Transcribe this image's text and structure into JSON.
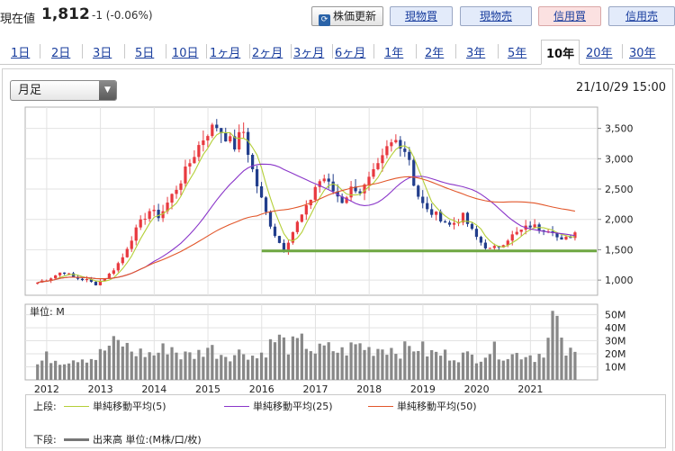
{
  "header": {
    "price_label": "現在値",
    "price": "1,812",
    "change": "-1 (-0.06%)",
    "update_label": "株価更新",
    "update_icon": "refresh-icon",
    "buttons": [
      "現物買",
      "現物売",
      "信用買",
      "信用売"
    ]
  },
  "tabs": [
    "1日",
    "2日",
    "3日",
    "5日",
    "10日",
    "1ヶ月",
    "2ヶ月",
    "3ヶ月",
    "6ヶ月",
    "1年",
    "2年",
    "3年",
    "5年",
    "10年",
    "20年",
    "30年"
  ],
  "active_tab": "10年",
  "period_select": "月足",
  "timestamp": "21/10/29 15:00",
  "volume_unit": "単位: M",
  "legend": {
    "upper_label": "上段:",
    "lower_label": "下段:",
    "ma5": "単純移動平均(5)",
    "ma25": "単純移動平均(25)",
    "ma50": "単純移動平均(50)",
    "volume": "出来高 単位:(M株/口/枚)"
  },
  "colors": {
    "up": "#e8393f",
    "down": "#223e8c",
    "ma5": "#b4cf38",
    "ma25": "#8a36c9",
    "ma50": "#e2572b",
    "support": "#6fa843",
    "volume": "#888888"
  },
  "chart_data": {
    "type": "candlestick",
    "x_ticks": [
      "2012",
      "2013",
      "2014",
      "2015",
      "2016",
      "2017",
      "2018",
      "2019",
      "2020",
      "2021"
    ],
    "price_ticks": [
      "3,500",
      "3,000",
      "2,500",
      "2,000",
      "1,500",
      "1,000"
    ],
    "price_range": [
      750,
      3850
    ],
    "volume_ticks": [
      "50M",
      "40M",
      "30M",
      "20M",
      "10M"
    ],
    "volume_range": [
      0,
      58
    ],
    "support_level": 1480,
    "price_anchors": [
      [
        2011.83,
        960
      ],
      [
        2012.1,
        1050
      ],
      [
        2012.3,
        1150
      ],
      [
        2012.5,
        1040
      ],
      [
        2012.75,
        1000
      ],
      [
        2012.9,
        930
      ],
      [
        2013.15,
        1080
      ],
      [
        2013.4,
        1350
      ],
      [
        2013.55,
        1650
      ],
      [
        2013.75,
        1950
      ],
      [
        2013.9,
        2150
      ],
      [
        2014.1,
        2050
      ],
      [
        2014.3,
        2350
      ],
      [
        2014.5,
        2650
      ],
      [
        2014.7,
        3000
      ],
      [
        2014.85,
        3250
      ],
      [
        2015.0,
        3450
      ],
      [
        2015.15,
        3550
      ],
      [
        2015.3,
        3400
      ],
      [
        2015.5,
        3200
      ],
      [
        2015.65,
        3500
      ],
      [
        2015.8,
        2900
      ],
      [
        2015.95,
        2450
      ],
      [
        2016.1,
        2050
      ],
      [
        2016.25,
        1750
      ],
      [
        2016.4,
        1500
      ],
      [
        2016.55,
        1750
      ],
      [
        2016.7,
        2000
      ],
      [
        2016.85,
        2200
      ],
      [
        2017.0,
        2550
      ],
      [
        2017.15,
        2700
      ],
      [
        2017.3,
        2500
      ],
      [
        2017.5,
        2300
      ],
      [
        2017.7,
        2550
      ],
      [
        2017.85,
        2450
      ],
      [
        2018.0,
        2650
      ],
      [
        2018.2,
        2900
      ],
      [
        2018.35,
        3200
      ],
      [
        2018.5,
        3300
      ],
      [
        2018.6,
        3250
      ],
      [
        2018.75,
        3000
      ],
      [
        2018.85,
        2500
      ],
      [
        2019.05,
        2150
      ],
      [
        2019.3,
        2050
      ],
      [
        2019.5,
        1900
      ],
      [
        2019.75,
        2050
      ],
      [
        2019.95,
        1750
      ],
      [
        2020.1,
        1600
      ],
      [
        2020.25,
        1500
      ],
      [
        2020.4,
        1550
      ],
      [
        2020.6,
        1700
      ],
      [
        2020.8,
        1800
      ],
      [
        2021.0,
        1900
      ],
      [
        2021.2,
        1850
      ],
      [
        2021.4,
        1850
      ],
      [
        2021.55,
        1620
      ],
      [
        2021.7,
        1700
      ],
      [
        2021.85,
        1800
      ]
    ],
    "volume_anchors": [
      [
        2011.83,
        12
      ],
      [
        2012.0,
        18
      ],
      [
        2012.3,
        15
      ],
      [
        2012.6,
        18
      ],
      [
        2012.9,
        17
      ],
      [
        2013.2,
        28
      ],
      [
        2013.4,
        29
      ],
      [
        2013.6,
        22
      ],
      [
        2014.0,
        20
      ],
      [
        2014.3,
        27
      ],
      [
        2014.5,
        19
      ],
      [
        2014.8,
        20
      ],
      [
        2015.0,
        26
      ],
      [
        2015.2,
        21
      ],
      [
        2015.5,
        20
      ],
      [
        2015.7,
        23
      ],
      [
        2015.9,
        17
      ],
      [
        2016.1,
        25
      ],
      [
        2016.3,
        33
      ],
      [
        2016.5,
        26
      ],
      [
        2016.8,
        30
      ],
      [
        2017.0,
        22
      ],
      [
        2017.2,
        25
      ],
      [
        2017.5,
        22
      ],
      [
        2017.8,
        28
      ],
      [
        2018.0,
        24
      ],
      [
        2018.3,
        26
      ],
      [
        2018.6,
        23
      ],
      [
        2018.9,
        27
      ],
      [
        2019.1,
        21
      ],
      [
        2019.4,
        20
      ],
      [
        2019.7,
        19
      ],
      [
        2020.0,
        18
      ],
      [
        2020.3,
        24
      ],
      [
        2020.6,
        19
      ],
      [
        2020.9,
        21
      ],
      [
        2021.1,
        18
      ],
      [
        2021.3,
        26
      ],
      [
        2021.45,
        56
      ],
      [
        2021.6,
        22
      ],
      [
        2021.85,
        20
      ]
    ]
  }
}
